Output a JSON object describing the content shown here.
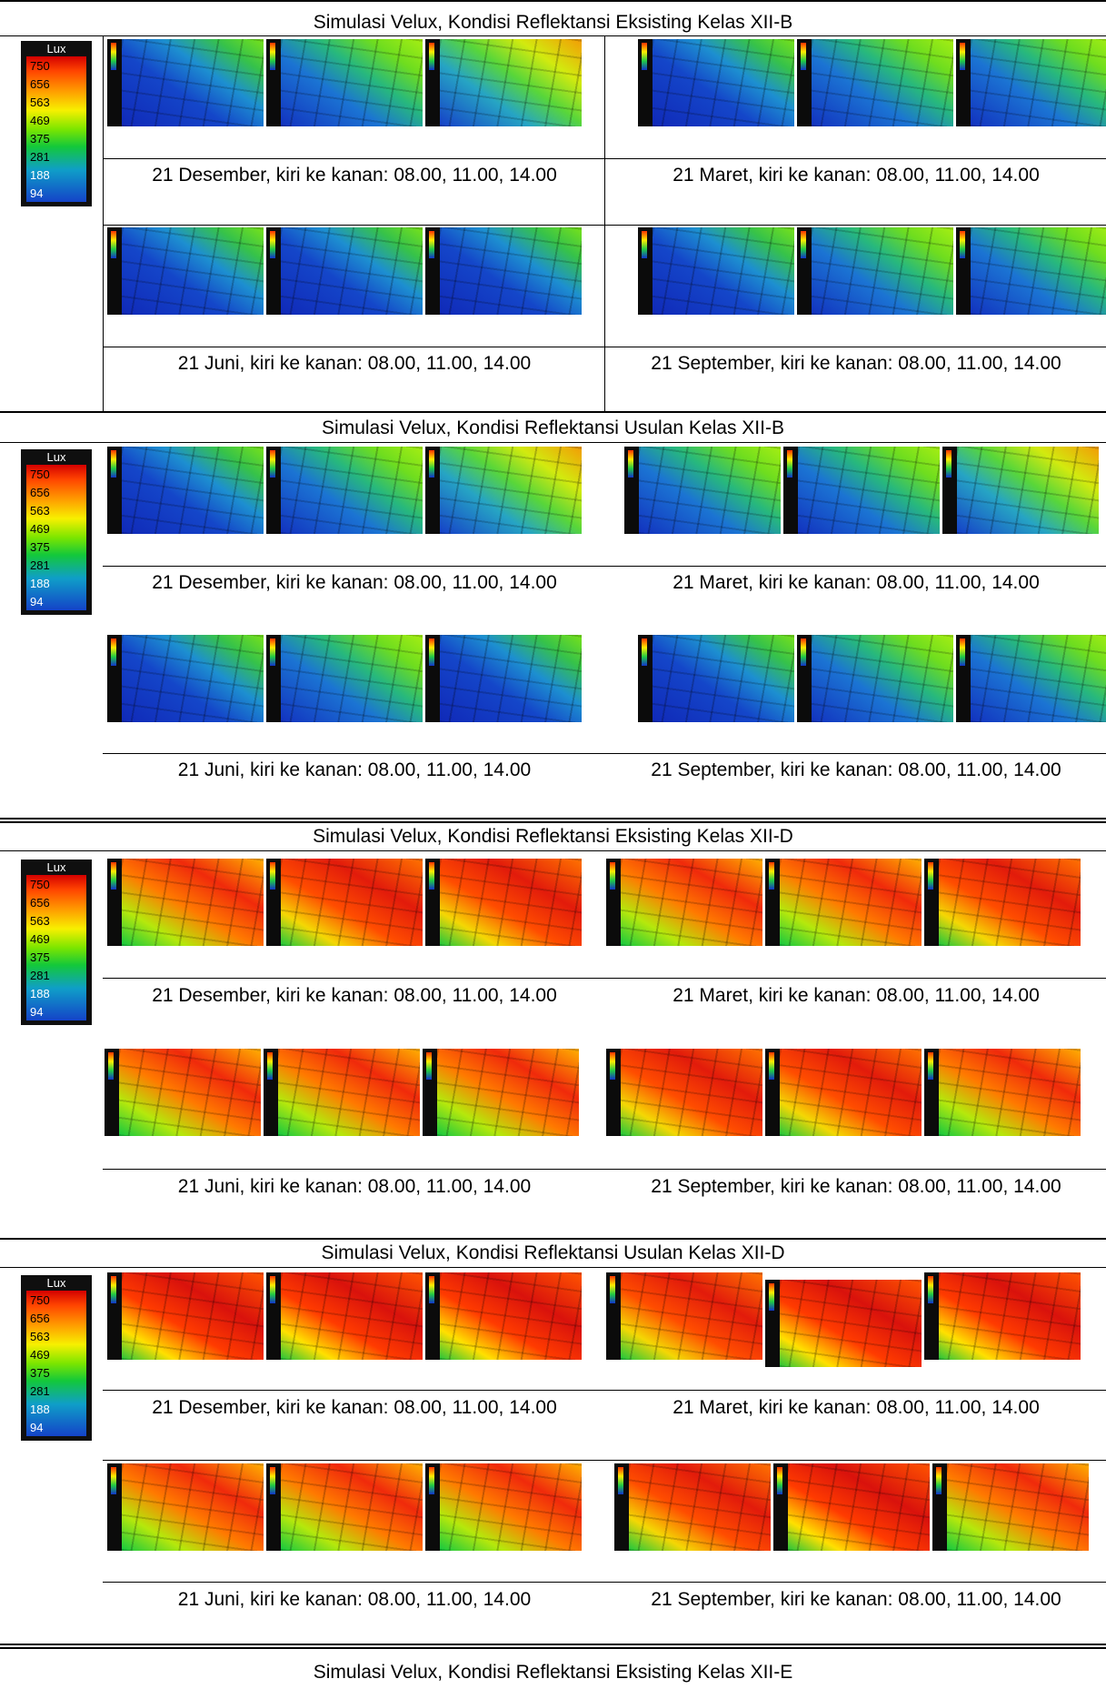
{
  "legend": {
    "unit": "Lux",
    "ticks": [
      "750",
      "656",
      "563",
      "469",
      "375",
      "281",
      "188",
      "94"
    ]
  },
  "captions": {
    "december": "21 Desember, kiri ke kanan: 08.00, 11.00, 14.00",
    "march": "21 Maret, kiri ke kanan: 08.00, 11.00, 14.00",
    "june": "21 Juni, kiri ke kanan: 08.00, 11.00, 14.00",
    "september": "21 September, kiri ke kanan: 08.00, 11.00, 14.00"
  },
  "sections": [
    {
      "title": "Simulasi Velux, Kondisi Reflektansi Eksisting Kelas XII-B"
    },
    {
      "title": "Simulasi Velux, Kondisi Reflektansi Usulan Kelas XII-B"
    },
    {
      "title": "Simulasi Velux, Kondisi Reflektansi Eksisting Kelas XII-D"
    },
    {
      "title": "Simulasi Velux, Kondisi Reflektansi Usulan Kelas XII-D"
    },
    {
      "title": "Simulasi Velux, Kondisi Reflektansi Eksisting Kelas XII-E"
    }
  ]
}
